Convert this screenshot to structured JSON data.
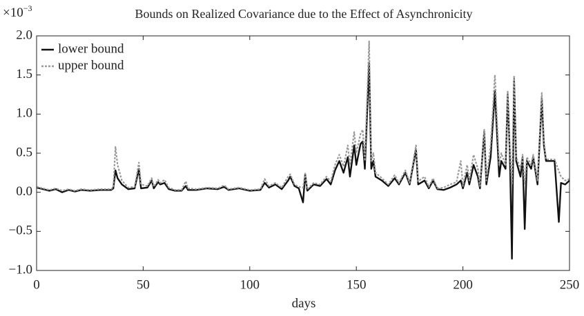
{
  "chart_data": {
    "type": "line",
    "title": "Bounds on Realized Covariance due to the Effect of Asynchronicity",
    "x_label": "days",
    "y_offset": {
      "base": "×10",
      "exponent": "−3"
    },
    "legend": "upper left",
    "grid": false,
    "xlim": [
      0,
      250
    ],
    "xticks": [
      0,
      50,
      100,
      150,
      200,
      250
    ],
    "ylim": [
      -1.0,
      2.0
    ],
    "yticks": [
      {
        "value": -1.0,
        "label": "−1.0"
      },
      {
        "value": -0.5,
        "label": "−0.5"
      },
      {
        "value": 0,
        "label": "0.0"
      },
      {
        "value": 0.5,
        "label": "0.5"
      },
      {
        "value": 1.0,
        "label": "1.0"
      },
      {
        "value": 1.5,
        "label": "1.5"
      },
      {
        "value": 2.0,
        "label": "2.0"
      }
    ],
    "x": [
      0,
      3,
      6,
      9,
      12,
      15,
      18,
      21,
      25,
      30,
      35,
      36,
      37,
      38,
      40,
      43,
      46,
      48,
      49,
      52,
      54,
      55,
      57,
      58,
      60,
      62,
      65,
      68,
      70,
      71,
      75,
      80,
      85,
      88,
      90,
      95,
      100,
      105,
      107,
      109,
      112,
      115,
      118,
      119,
      121,
      123,
      125,
      126,
      127,
      130,
      133,
      136,
      138,
      140,
      142,
      144,
      146,
      147,
      149,
      150,
      152,
      153,
      154,
      156,
      157,
      158,
      159,
      162,
      165,
      168,
      170,
      173,
      175,
      178,
      179,
      182,
      184,
      186,
      188,
      191,
      194,
      197,
      199,
      200,
      202,
      203,
      205,
      207,
      208,
      210,
      211,
      213,
      215,
      217,
      218,
      220,
      221,
      222,
      223,
      224,
      225,
      227,
      228,
      229,
      230,
      232,
      233,
      235,
      237,
      238,
      239,
      241,
      243,
      245,
      246,
      248,
      250
    ],
    "series": [
      {
        "name": "lower bound",
        "color": "#111111",
        "dashed": false,
        "values": [
          0.06,
          0.04,
          0.02,
          0.04,
          0.0,
          0.03,
          0.01,
          0.03,
          0.02,
          0.03,
          0.03,
          0.05,
          0.28,
          0.18,
          0.1,
          0.04,
          0.05,
          0.3,
          0.05,
          0.06,
          0.15,
          0.05,
          0.13,
          0.1,
          0.12,
          0.04,
          0.02,
          0.02,
          0.08,
          0.03,
          0.03,
          0.05,
          0.04,
          0.07,
          0.03,
          0.05,
          0.02,
          0.03,
          0.12,
          0.06,
          0.1,
          0.04,
          0.15,
          0.2,
          0.08,
          0.05,
          -0.13,
          0.23,
          0.02,
          0.1,
          0.08,
          0.17,
          0.1,
          0.28,
          0.4,
          0.25,
          0.45,
          0.2,
          0.6,
          0.35,
          0.62,
          0.65,
          0.3,
          1.65,
          0.3,
          0.4,
          0.2,
          0.15,
          0.08,
          0.18,
          0.1,
          0.25,
          0.1,
          0.55,
          0.1,
          0.15,
          0.05,
          0.15,
          0.04,
          0.03,
          0.06,
          0.1,
          0.15,
          0.05,
          0.25,
          0.1,
          0.35,
          0.2,
          0.05,
          0.78,
          0.1,
          0.45,
          1.3,
          0.2,
          0.4,
          0.3,
          1.25,
          0.5,
          -0.85,
          1.45,
          0.4,
          0.2,
          0.45,
          -0.47,
          0.4,
          0.3,
          0.45,
          0.1,
          1.2,
          0.6,
          0.4,
          0.4,
          0.4,
          -0.38,
          0.12,
          0.1,
          0.15
        ]
      },
      {
        "name": "upper bound",
        "color": "#999999",
        "dashed": true,
        "values": [
          0.07,
          0.05,
          0.03,
          0.05,
          0.02,
          0.04,
          0.02,
          0.04,
          0.03,
          0.04,
          0.04,
          0.07,
          0.58,
          0.35,
          0.15,
          0.06,
          0.07,
          0.38,
          0.1,
          0.08,
          0.18,
          0.07,
          0.16,
          0.12,
          0.16,
          0.06,
          0.03,
          0.03,
          0.14,
          0.05,
          0.04,
          0.06,
          0.05,
          0.09,
          0.04,
          0.06,
          0.03,
          0.04,
          0.17,
          0.08,
          0.12,
          0.06,
          0.2,
          0.23,
          0.1,
          0.07,
          0.06,
          0.24,
          0.04,
          0.12,
          0.1,
          0.2,
          0.14,
          0.35,
          0.48,
          0.33,
          0.6,
          0.35,
          0.77,
          0.5,
          0.75,
          0.8,
          0.4,
          1.93,
          0.4,
          0.5,
          0.25,
          0.18,
          0.1,
          0.22,
          0.12,
          0.28,
          0.12,
          0.6,
          0.14,
          0.2,
          0.07,
          0.18,
          0.05,
          0.06,
          0.1,
          0.13,
          0.4,
          0.08,
          0.35,
          0.15,
          0.48,
          0.3,
          0.08,
          0.8,
          0.15,
          0.6,
          1.5,
          0.35,
          0.5,
          0.35,
          1.3,
          0.55,
          0.1,
          1.48,
          0.45,
          0.3,
          0.48,
          0.1,
          0.45,
          0.35,
          0.48,
          0.15,
          1.27,
          0.65,
          0.42,
          0.42,
          0.42,
          0.27,
          0.2,
          0.15,
          0.17
        ]
      }
    ]
  }
}
